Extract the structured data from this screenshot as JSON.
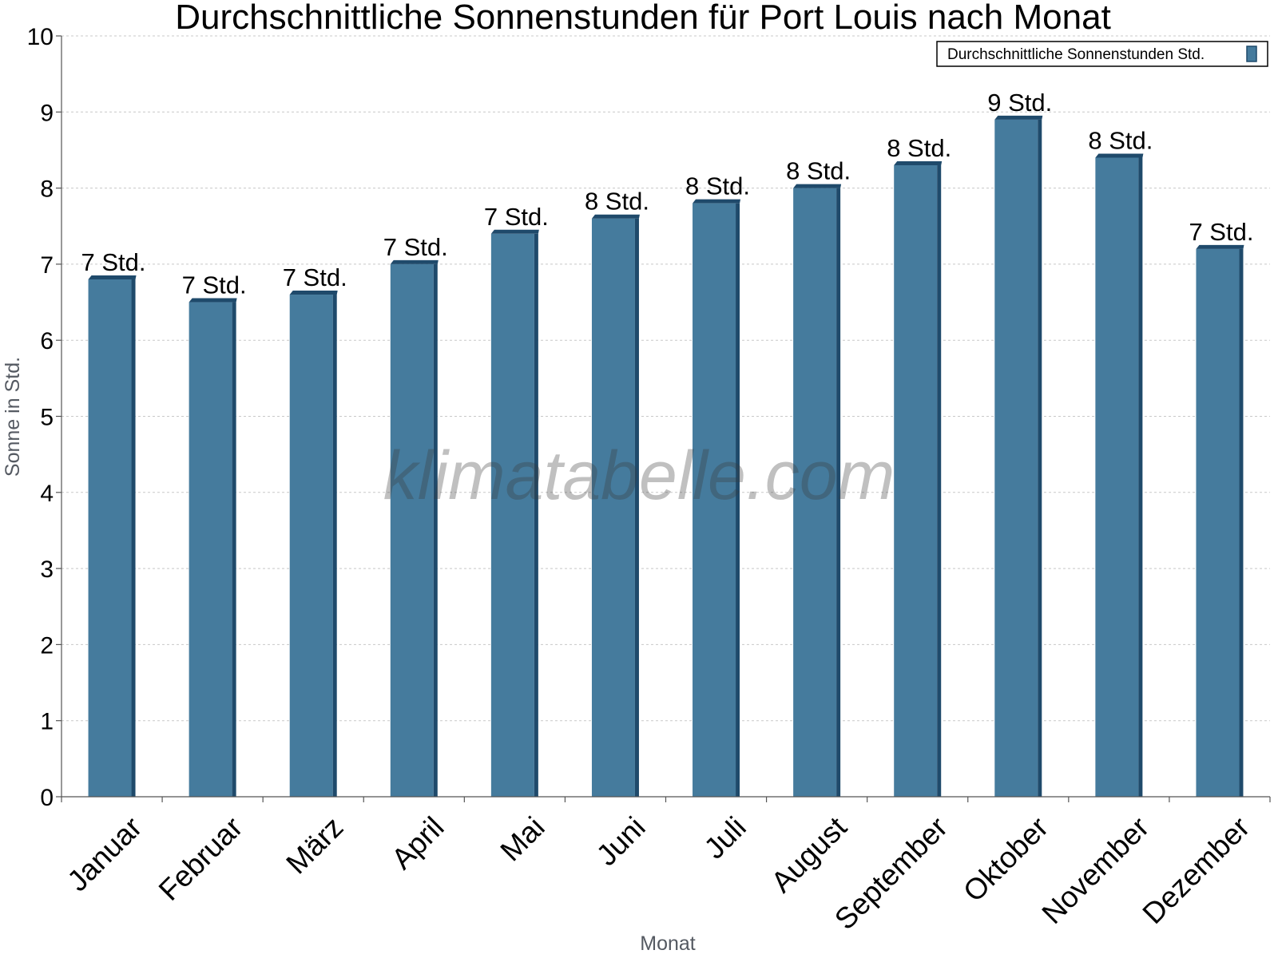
{
  "chart_data": {
    "type": "bar",
    "title": "Durchschnittliche Sonnenstunden für Port Louis nach Monat",
    "xlabel": "Monat",
    "ylabel": "Sonne in Std.",
    "ylim": [
      0,
      10
    ],
    "yticks": [
      "0",
      "1",
      "2",
      "3",
      "4",
      "5",
      "6",
      "7",
      "8",
      "9",
      "10"
    ],
    "grid": true,
    "legend_position": "top-right",
    "categories": [
      "Januar",
      "Februar",
      "März",
      "April",
      "Mai",
      "Juni",
      "Juli",
      "August",
      "September",
      "Oktober",
      "November",
      "Dezember"
    ],
    "series": [
      {
        "name": "Durchschnittliche Sonnenstunden Std.",
        "color": "#457b9d",
        "values": [
          6.8,
          6.5,
          6.6,
          7.0,
          7.4,
          7.6,
          7.8,
          8.0,
          8.3,
          8.9,
          8.4,
          7.2
        ],
        "labels": [
          "7 Std.",
          "7 Std.",
          "7 Std.",
          "7 Std.",
          "7 Std.",
          "8 Std.",
          "8 Std.",
          "8 Std.",
          "8 Std.",
          "9 Std.",
          "8 Std.",
          "7 Std."
        ]
      }
    ],
    "colors": {
      "bar": "#457b9d",
      "bar_side": "#1f4a6b",
      "bar_top": "#1f4a6b",
      "grid": "#c8c8c8",
      "axis": "#555555"
    },
    "watermark": "klimatabelle.com"
  }
}
